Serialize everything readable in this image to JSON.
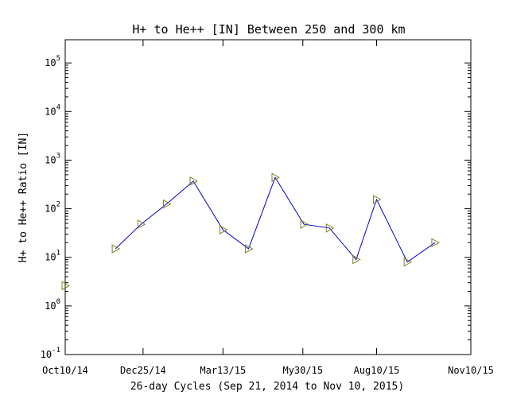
{
  "chart_data": {
    "type": "line",
    "title": "H+ to He++ [IN] Between 250 and 300 km",
    "xlabel": "26-day Cycles (Sep 21, 2014 to Nov 10, 2015)",
    "ylabel": "H+ to He++ Ratio [IN]",
    "yscale": "log",
    "ylim": [
      0.1,
      300000
    ],
    "xlim": [
      "2014-10-10",
      "2015-11-10"
    ],
    "x_tick_labels": [
      "Oct10/14",
      "Dec25/14",
      "Mar13/15",
      "My30/15",
      "Aug10/15",
      "Nov10/15"
    ],
    "y_tick_labels": [
      {
        "base": "10",
        "exp": "-1"
      },
      {
        "base": "10",
        "exp": "0"
      },
      {
        "base": "10",
        "exp": "1"
      },
      {
        "base": "10",
        "exp": "2"
      },
      {
        "base": "10",
        "exp": "3"
      },
      {
        "base": "10",
        "exp": "4"
      },
      {
        "base": "10",
        "exp": "5"
      }
    ],
    "grid": false,
    "colors": {
      "line": "#0000cc",
      "marker": "#808020",
      "axes": "#000000"
    },
    "series": [
      {
        "marker": "triangle-right",
        "points": [
          {
            "x": "2014-10-10",
            "y": 2.6
          },
          {
            "x": "2014-11-28",
            "y": 15
          },
          {
            "x": "2014-12-23",
            "y": 48
          },
          {
            "x": "2015-01-17",
            "y": 125
          },
          {
            "x": "2015-02-12",
            "y": 370
          },
          {
            "x": "2015-03-13",
            "y": 37
          },
          {
            "x": "2015-04-07",
            "y": 15
          },
          {
            "x": "2015-05-03",
            "y": 440
          },
          {
            "x": "2015-05-31",
            "y": 48
          },
          {
            "x": "2015-06-25",
            "y": 40
          },
          {
            "x": "2015-07-21",
            "y": 9
          },
          {
            "x": "2015-08-10",
            "y": 155
          },
          {
            "x": "2015-09-09",
            "y": 8
          },
          {
            "x": "2015-10-06",
            "y": 20
          }
        ]
      }
    ]
  }
}
